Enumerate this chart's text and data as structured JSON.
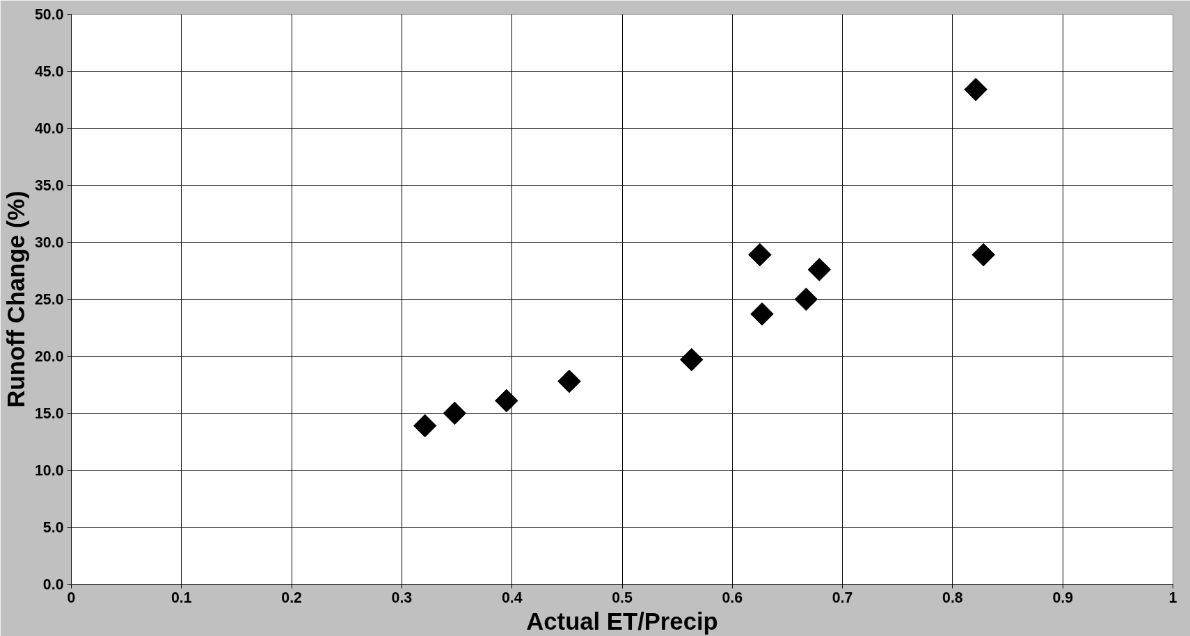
{
  "chart_data": {
    "type": "scatter",
    "xlabel": "Actual ET/Precip",
    "ylabel": "Runoff Change (%)",
    "x": [
      0.321,
      0.348,
      0.395,
      0.452,
      0.563,
      0.625,
      0.627,
      0.667,
      0.679,
      0.821,
      0.828
    ],
    "series": [
      {
        "color": "#000000",
        "values": [
          13.9,
          15.0,
          16.1,
          17.8,
          19.7,
          28.9,
          23.7,
          25.0,
          27.6,
          43.4,
          28.9
        ]
      }
    ],
    "xlim": [
      0,
      1
    ],
    "xticks": [
      0,
      0.1,
      0.2,
      0.3,
      0.4,
      0.5,
      0.6,
      0.7,
      0.8,
      0.9,
      1
    ],
    "ylim": [
      0,
      50
    ],
    "yticks": [
      {
        "value": 0,
        "label": "0.0"
      },
      {
        "value": 5,
        "label": "5.0"
      },
      {
        "value": 10,
        "label": "10.0"
      },
      {
        "value": 15,
        "label": "15.0"
      },
      {
        "value": 20,
        "label": "20.0"
      },
      {
        "value": 25,
        "label": "25.0"
      },
      {
        "value": 30,
        "label": "30.0"
      },
      {
        "value": 35,
        "label": "35.0"
      },
      {
        "value": 40,
        "label": "40.0"
      },
      {
        "value": 45,
        "label": "45.0"
      },
      {
        "value": 50,
        "label": "50.0"
      }
    ],
    "grid": true,
    "marker": "diamond"
  }
}
